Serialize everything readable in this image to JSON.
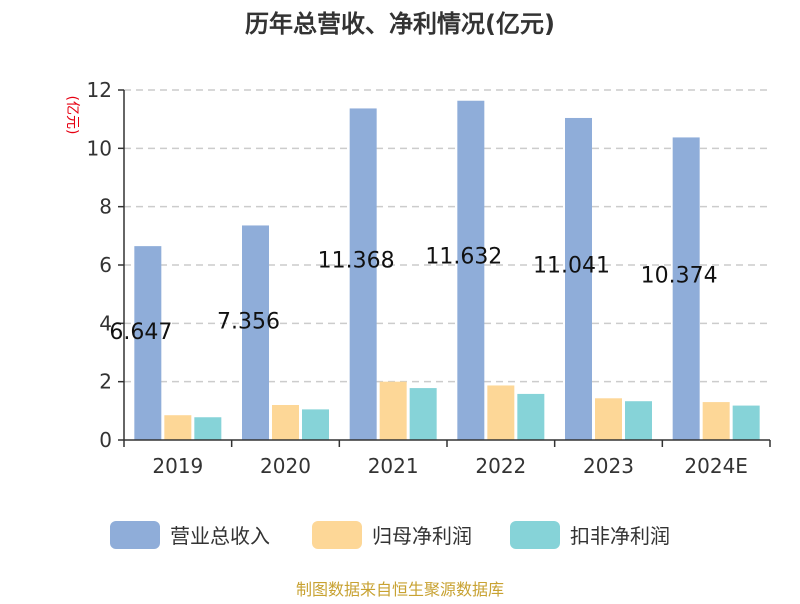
{
  "chart_data": {
    "type": "bar",
    "title": "历年总营收、净利情况(亿元)",
    "ylabel": "(亿元)",
    "xlabel": "",
    "categories": [
      "2019",
      "2020",
      "2021",
      "2022",
      "2023",
      "2024E"
    ],
    "ylim": [
      0,
      12
    ],
    "yticks": [
      0,
      2,
      4,
      6,
      8,
      10,
      12
    ],
    "grid": true,
    "legend_position": "bottom",
    "series": [
      {
        "name": "营业总收入",
        "color": "#8fadd9",
        "values": [
          6.647,
          7.356,
          11.368,
          11.632,
          11.041,
          10.374
        ],
        "labels": [
          "6.647",
          "7.356",
          "11.368",
          "11.632",
          "11.041",
          "10.374"
        ]
      },
      {
        "name": "归母净利润",
        "color": "#fdd797",
        "values": [
          0.85,
          1.2,
          2.0,
          1.87,
          1.43,
          1.3
        ]
      },
      {
        "name": "扣非净利润",
        "color": "#86d3d8",
        "values": [
          0.78,
          1.05,
          1.78,
          1.58,
          1.33,
          1.18
        ]
      }
    ]
  },
  "source_text": "制图数据来自恒生聚源数据库"
}
